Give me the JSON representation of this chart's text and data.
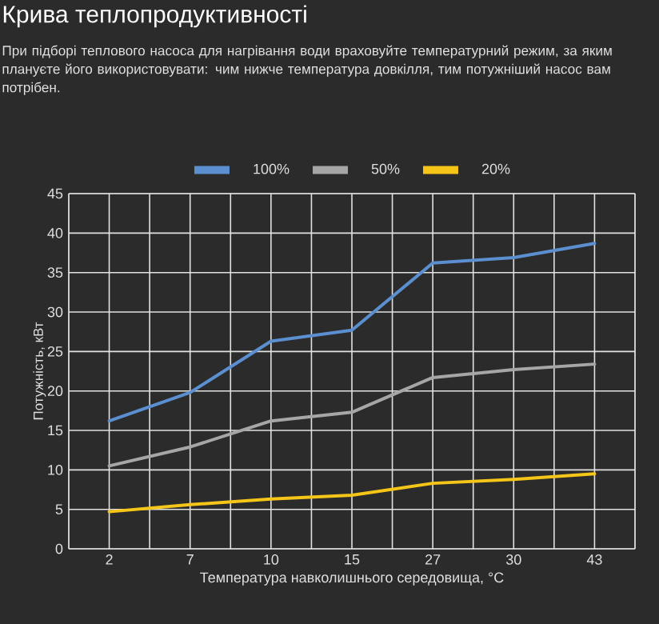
{
  "chart_data": {
    "type": "line",
    "title": "Крива теплопродуктивності",
    "subtitle": "При підборі теплового насоса для нагрівання води враховуйте температурний режим, за яким плануєте його використовувати: чим нижче температура довкілля, тим потужніший насос вам потрібен.",
    "xlabel": "Температура навколишнього середовища, °C",
    "ylabel": "Потужність, кВт",
    "categories": [
      "2",
      "7",
      "10",
      "15",
      "27",
      "30",
      "43"
    ],
    "series": [
      {
        "name": "100%",
        "color": "#5b8fd0",
        "values": [
          16.2,
          19.8,
          26.3,
          27.7,
          36.2,
          36.9,
          38.7
        ]
      },
      {
        "name": "50%",
        "color": "#a6a6a6",
        "values": [
          10.5,
          12.9,
          16.2,
          17.3,
          21.7,
          22.7,
          23.4
        ]
      },
      {
        "name": "20%",
        "color": "#f5c518",
        "values": [
          4.7,
          5.6,
          6.3,
          6.8,
          8.3,
          8.8,
          9.5
        ]
      }
    ],
    "ylim": [
      0,
      45
    ],
    "yticks": [
      0,
      5,
      10,
      15,
      20,
      25,
      30,
      35,
      40,
      45
    ],
    "grid": true,
    "legend": "top",
    "marker": "none",
    "line_style": "solid"
  }
}
